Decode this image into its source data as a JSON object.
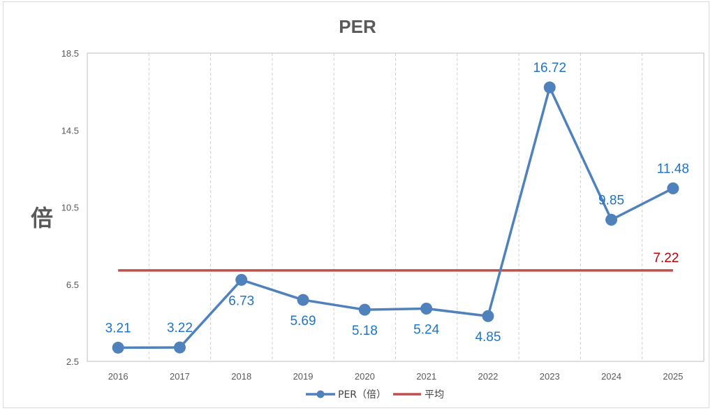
{
  "chart_data": {
    "type": "line",
    "title": "PER",
    "ylabel": "倍",
    "xlabel": "",
    "categories": [
      "2016",
      "2017",
      "2018",
      "2019",
      "2020",
      "2021",
      "2022",
      "2023",
      "2024",
      "2025"
    ],
    "series": [
      {
        "name": "PER（倍）",
        "color": "#4f81bd",
        "values": [
          3.21,
          3.22,
          6.73,
          5.69,
          5.18,
          5.24,
          4.85,
          16.72,
          9.85,
          11.48
        ],
        "labels": [
          "3.21",
          "3.22",
          "6.73",
          "5.69",
          "5.18",
          "5.24",
          "4.85",
          "16.72",
          "9.85",
          "11.48"
        ],
        "label_color": "#1f74c7"
      },
      {
        "name": "平均",
        "color": "#c0504d",
        "value": 7.22,
        "label": "7.22",
        "label_color": "#c00000"
      }
    ],
    "ylim": [
      2.5,
      18.5
    ],
    "yticks": [
      "2.5",
      "6.5",
      "10.5",
      "14.5",
      "18.5"
    ],
    "grid": "vertical-dashed",
    "legend_position": "bottom"
  }
}
